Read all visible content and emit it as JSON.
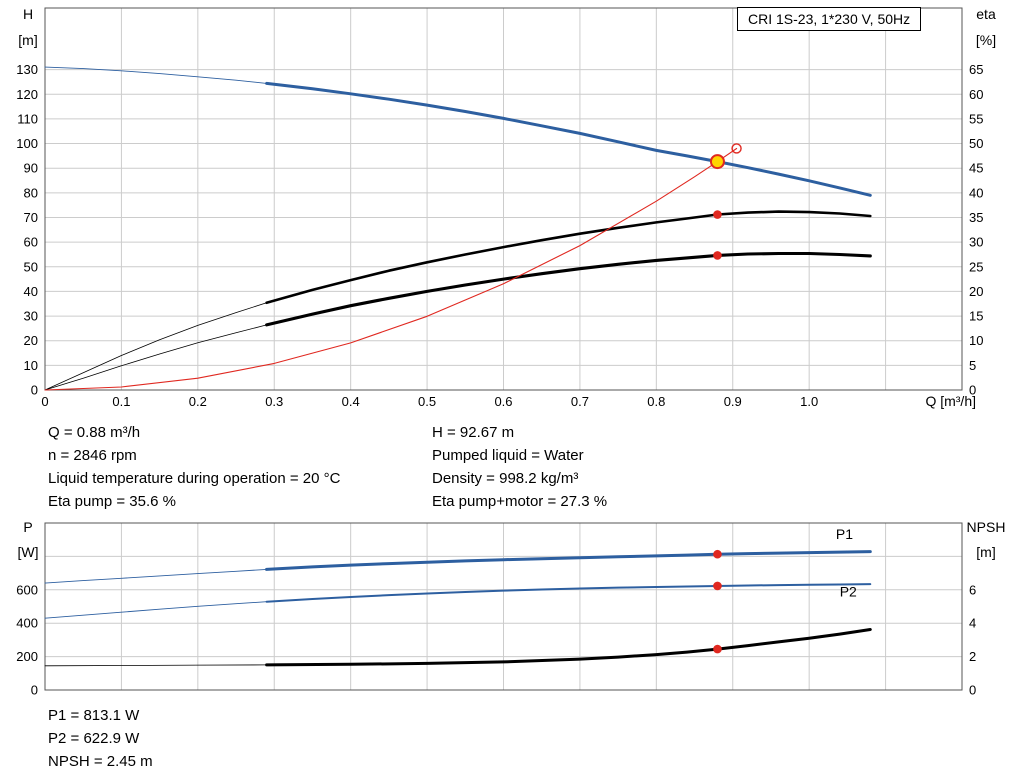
{
  "title_box": "CRI 1S-23, 1*230 V, 50Hz",
  "colors": {
    "blue": "#2d5fa0",
    "red": "#e02820",
    "yellow": "#ffd400",
    "black": "#000000",
    "grid": "#cccccc",
    "frame": "#555555"
  },
  "annotations": {
    "duty_left": [
      "Q = 0.88 m³/h",
      "n = 2846 rpm",
      "Liquid temperature during operation = 20 °C",
      "Eta pump = 35.6 %"
    ],
    "duty_right": [
      "H = 92.67 m",
      "Pumped liquid = Water",
      "Density = 998.2 kg/m³",
      "Eta pump+motor = 27.3 %"
    ],
    "power": [
      "P1 = 813.1 W",
      "P2 = 622.9 W",
      "NPSH = 2.45 m"
    ]
  },
  "chart_data": [
    {
      "id": "qh-eta",
      "type": "line",
      "title": "CRI 1S-23, 1*230 V, 50Hz",
      "x": {
        "label": "Q [m³/h]",
        "min": 0,
        "max": 1.2,
        "ticks": [
          {
            "v": 0,
            "t": "0"
          },
          {
            "v": 0.1,
            "t": "0.1"
          },
          {
            "v": 0.2,
            "t": "0.2"
          },
          {
            "v": 0.3,
            "t": "0.3"
          },
          {
            "v": 0.4,
            "t": "0.4"
          },
          {
            "v": 0.5,
            "t": "0.5"
          },
          {
            "v": 0.6,
            "t": "0.6"
          },
          {
            "v": 0.7,
            "t": "0.7"
          },
          {
            "v": 0.8,
            "t": "0.8"
          },
          {
            "v": 0.9,
            "t": "0.9"
          },
          {
            "v": 1.0,
            "t": "1.0"
          }
        ],
        "grid": [
          1.1
        ]
      },
      "left": {
        "label": [
          "H",
          "[m]"
        ],
        "min": 0,
        "max": 155,
        "ticks": [
          {
            "v": 0,
            "t": "0"
          },
          {
            "v": 10,
            "t": "10"
          },
          {
            "v": 20,
            "t": "20"
          },
          {
            "v": 30,
            "t": "30"
          },
          {
            "v": 40,
            "t": "40"
          },
          {
            "v": 50,
            "t": "50"
          },
          {
            "v": 60,
            "t": "60"
          },
          {
            "v": 70,
            "t": "70"
          },
          {
            "v": 80,
            "t": "80"
          },
          {
            "v": 90,
            "t": "90"
          },
          {
            "v": 100,
            "t": "100"
          },
          {
            "v": 110,
            "t": "110"
          },
          {
            "v": 120,
            "t": "120"
          },
          {
            "v": 130,
            "t": "130"
          }
        ],
        "grid": []
      },
      "right": {
        "label": [
          "eta",
          "[%]"
        ],
        "min": 0,
        "max": 77.5,
        "ticks": [
          {
            "v": 0,
            "t": "0"
          },
          {
            "v": 5,
            "t": "5"
          },
          {
            "v": 10,
            "t": "10"
          },
          {
            "v": 15,
            "t": "15"
          },
          {
            "v": 20,
            "t": "20"
          },
          {
            "v": 25,
            "t": "25"
          },
          {
            "v": 30,
            "t": "30"
          },
          {
            "v": 35,
            "t": "35"
          },
          {
            "v": 40,
            "t": "40"
          },
          {
            "v": 45,
            "t": "45"
          },
          {
            "v": 50,
            "t": "50"
          },
          {
            "v": 55,
            "t": "55"
          },
          {
            "v": 60,
            "t": "60"
          },
          {
            "v": 65,
            "t": "65"
          }
        ]
      },
      "series": [
        {
          "name": "head-curve",
          "axis": "left",
          "color": "#2d5fa0",
          "width": 3,
          "thin_width": 0.9,
          "thin_until": 0.29,
          "points": [
            [
              0,
              131
            ],
            [
              0.05,
              130.4
            ],
            [
              0.1,
              129.5
            ],
            [
              0.15,
              128.4
            ],
            [
              0.2,
              127.1
            ],
            [
              0.25,
              125.7
            ],
            [
              0.29,
              124.4
            ],
            [
              0.35,
              122.2
            ],
            [
              0.4,
              120.2
            ],
            [
              0.45,
              118.0
            ],
            [
              0.5,
              115.6
            ],
            [
              0.55,
              113.0
            ],
            [
              0.6,
              110.2
            ],
            [
              0.65,
              107.2
            ],
            [
              0.7,
              104.1
            ],
            [
              0.75,
              100.7
            ],
            [
              0.8,
              97.2
            ],
            [
              0.84,
              95.0
            ],
            [
              0.88,
              92.67
            ],
            [
              0.92,
              90.2
            ],
            [
              0.96,
              87.6
            ],
            [
              1.0,
              84.9
            ],
            [
              1.04,
              82.0
            ],
            [
              1.08,
              79.0
            ]
          ]
        },
        {
          "name": "eta-pump-curve",
          "axis": "right",
          "color": "#000000",
          "width": 2.6,
          "thin_width": 0.8,
          "thin_until": 0.29,
          "points": [
            [
              0,
              0
            ],
            [
              0.05,
              3.5
            ],
            [
              0.1,
              7.0
            ],
            [
              0.15,
              10.2
            ],
            [
              0.2,
              13.1
            ],
            [
              0.25,
              15.7
            ],
            [
              0.29,
              17.7
            ],
            [
              0.35,
              20.3
            ],
            [
              0.4,
              22.3
            ],
            [
              0.45,
              24.2
            ],
            [
              0.5,
              25.9
            ],
            [
              0.55,
              27.5
            ],
            [
              0.6,
              29.0
            ],
            [
              0.65,
              30.4
            ],
            [
              0.7,
              31.7
            ],
            [
              0.75,
              32.9
            ],
            [
              0.8,
              34.0
            ],
            [
              0.84,
              34.8
            ],
            [
              0.88,
              35.6
            ],
            [
              0.92,
              36.0
            ],
            [
              0.96,
              36.2
            ],
            [
              1.0,
              36.1
            ],
            [
              1.04,
              35.8
            ],
            [
              1.08,
              35.3
            ]
          ]
        },
        {
          "name": "eta-pump-motor-curve",
          "axis": "right",
          "color": "#000000",
          "width": 3.1,
          "thin_width": 0.8,
          "thin_until": 0.29,
          "points": [
            [
              0,
              0
            ],
            [
              0.05,
              2.4
            ],
            [
              0.1,
              4.9
            ],
            [
              0.15,
              7.3
            ],
            [
              0.2,
              9.6
            ],
            [
              0.25,
              11.6
            ],
            [
              0.29,
              13.2
            ],
            [
              0.35,
              15.4
            ],
            [
              0.4,
              17.1
            ],
            [
              0.45,
              18.6
            ],
            [
              0.5,
              20.0
            ],
            [
              0.55,
              21.3
            ],
            [
              0.6,
              22.5
            ],
            [
              0.65,
              23.6
            ],
            [
              0.7,
              24.6
            ],
            [
              0.75,
              25.5
            ],
            [
              0.8,
              26.3
            ],
            [
              0.84,
              26.8
            ],
            [
              0.88,
              27.3
            ],
            [
              0.92,
              27.6
            ],
            [
              0.96,
              27.7
            ],
            [
              1.0,
              27.7
            ],
            [
              1.04,
              27.5
            ],
            [
              1.08,
              27.2
            ]
          ]
        },
        {
          "name": "system-curve",
          "axis": "left",
          "color": "#e02820",
          "width": 1.1,
          "points": [
            [
              0,
              0
            ],
            [
              0.1,
              1.2
            ],
            [
              0.2,
              4.8
            ],
            [
              0.3,
              10.8
            ],
            [
              0.4,
              19.1
            ],
            [
              0.5,
              29.9
            ],
            [
              0.6,
              43.1
            ],
            [
              0.7,
              58.6
            ],
            [
              0.8,
              76.6
            ],
            [
              0.85,
              86.5
            ],
            [
              0.88,
              92.67
            ],
            [
              0.905,
              98.0
            ]
          ]
        }
      ],
      "markers": [
        {
          "name": "duty-point",
          "q": 0.88,
          "v": 92.67,
          "axis": "left",
          "style": "duty"
        },
        {
          "name": "system-curve-end-point",
          "q": 0.905,
          "v": 98.0,
          "axis": "left",
          "style": "open"
        },
        {
          "name": "eta-pump-point",
          "q": 0.88,
          "v": 35.6,
          "axis": "right",
          "style": "dot"
        },
        {
          "name": "eta-pump-motor-point",
          "q": 0.88,
          "v": 27.3,
          "axis": "right",
          "style": "dot"
        }
      ],
      "labels": []
    },
    {
      "id": "power-npsh",
      "type": "line",
      "x": {
        "label": "",
        "min": 0,
        "max": 1.2,
        "ticks": [],
        "grid": [
          0.1,
          0.2,
          0.3,
          0.4,
          0.5,
          0.6,
          0.7,
          0.8,
          0.9,
          1.0,
          1.1
        ]
      },
      "left": {
        "label": [
          "P",
          "[W]"
        ],
        "min": 0,
        "max": 1000,
        "ticks": [
          {
            "v": 0,
            "t": "0"
          },
          {
            "v": 200,
            "t": "200"
          },
          {
            "v": 400,
            "t": "400"
          },
          {
            "v": 600,
            "t": "600"
          }
        ],
        "grid": [
          800
        ]
      },
      "right": {
        "label": [
          "NPSH",
          "[m]"
        ],
        "min": 0,
        "max": 10,
        "ticks": [
          {
            "v": 0,
            "t": "0"
          },
          {
            "v": 2,
            "t": "2"
          },
          {
            "v": 4,
            "t": "4"
          },
          {
            "v": 6,
            "t": "6"
          }
        ]
      },
      "series": [
        {
          "name": "p1-curve",
          "axis": "left",
          "color": "#2d5fa0",
          "width": 3,
          "thin_width": 0.9,
          "thin_until": 0.29,
          "points": [
            [
              0,
              640
            ],
            [
              0.05,
              655
            ],
            [
              0.1,
              669
            ],
            [
              0.15,
              683
            ],
            [
              0.2,
              697
            ],
            [
              0.25,
              711
            ],
            [
              0.29,
              722
            ],
            [
              0.35,
              737
            ],
            [
              0.4,
              748
            ],
            [
              0.45,
              757
            ],
            [
              0.5,
              765
            ],
            [
              0.55,
              773
            ],
            [
              0.6,
              780
            ],
            [
              0.65,
              786
            ],
            [
              0.7,
              792
            ],
            [
              0.75,
              798
            ],
            [
              0.8,
              803
            ],
            [
              0.84,
              808
            ],
            [
              0.88,
              813
            ],
            [
              0.92,
              817
            ],
            [
              0.96,
              820
            ],
            [
              1.0,
              823
            ],
            [
              1.04,
              826
            ],
            [
              1.08,
              829
            ]
          ]
        },
        {
          "name": "p2-curve",
          "axis": "left",
          "color": "#2d5fa0",
          "width": 2,
          "thin_width": 0.9,
          "thin_until": 0.29,
          "points": [
            [
              0,
              430
            ],
            [
              0.05,
              448
            ],
            [
              0.1,
              466
            ],
            [
              0.15,
              484
            ],
            [
              0.2,
              501
            ],
            [
              0.25,
              517
            ],
            [
              0.29,
              529
            ],
            [
              0.35,
              545
            ],
            [
              0.4,
              557
            ],
            [
              0.45,
              568
            ],
            [
              0.5,
              578
            ],
            [
              0.55,
              587
            ],
            [
              0.6,
              595
            ],
            [
              0.65,
              602
            ],
            [
              0.7,
              608
            ],
            [
              0.75,
              613
            ],
            [
              0.8,
              617
            ],
            [
              0.84,
              620
            ],
            [
              0.88,
              623
            ],
            [
              0.92,
              626
            ],
            [
              0.96,
              628
            ],
            [
              1.0,
              630
            ],
            [
              1.04,
              632
            ],
            [
              1.08,
              634
            ]
          ]
        },
        {
          "name": "npsh-curve",
          "axis": "right",
          "color": "#000000",
          "width": 3,
          "thin_width": 0.8,
          "thin_until": 0.29,
          "points": [
            [
              0,
              1.45
            ],
            [
              0.1,
              1.47
            ],
            [
              0.2,
              1.49
            ],
            [
              0.29,
              1.5
            ],
            [
              0.4,
              1.54
            ],
            [
              0.5,
              1.59
            ],
            [
              0.6,
              1.68
            ],
            [
              0.7,
              1.85
            ],
            [
              0.75,
              1.97
            ],
            [
              0.8,
              2.12
            ],
            [
              0.84,
              2.27
            ],
            [
              0.88,
              2.45
            ],
            [
              0.92,
              2.66
            ],
            [
              0.96,
              2.88
            ],
            [
              1.0,
              3.1
            ],
            [
              1.04,
              3.35
            ],
            [
              1.08,
              3.62
            ]
          ]
        }
      ],
      "markers": [
        {
          "name": "p1-point",
          "q": 0.88,
          "v": 813,
          "axis": "left",
          "style": "dot"
        },
        {
          "name": "p2-point",
          "q": 0.88,
          "v": 623,
          "axis": "left",
          "style": "dot"
        },
        {
          "name": "npsh-point",
          "q": 0.88,
          "v": 2.45,
          "axis": "right",
          "style": "dot"
        }
      ],
      "labels": [
        {
          "text": "P1",
          "q": 1.035,
          "v": 905,
          "axis": "left",
          "color": "#2d5fa0"
        },
        {
          "text": "P2",
          "q": 1.04,
          "v": 560,
          "axis": "left",
          "color": "#2d5fa0"
        }
      ]
    }
  ]
}
